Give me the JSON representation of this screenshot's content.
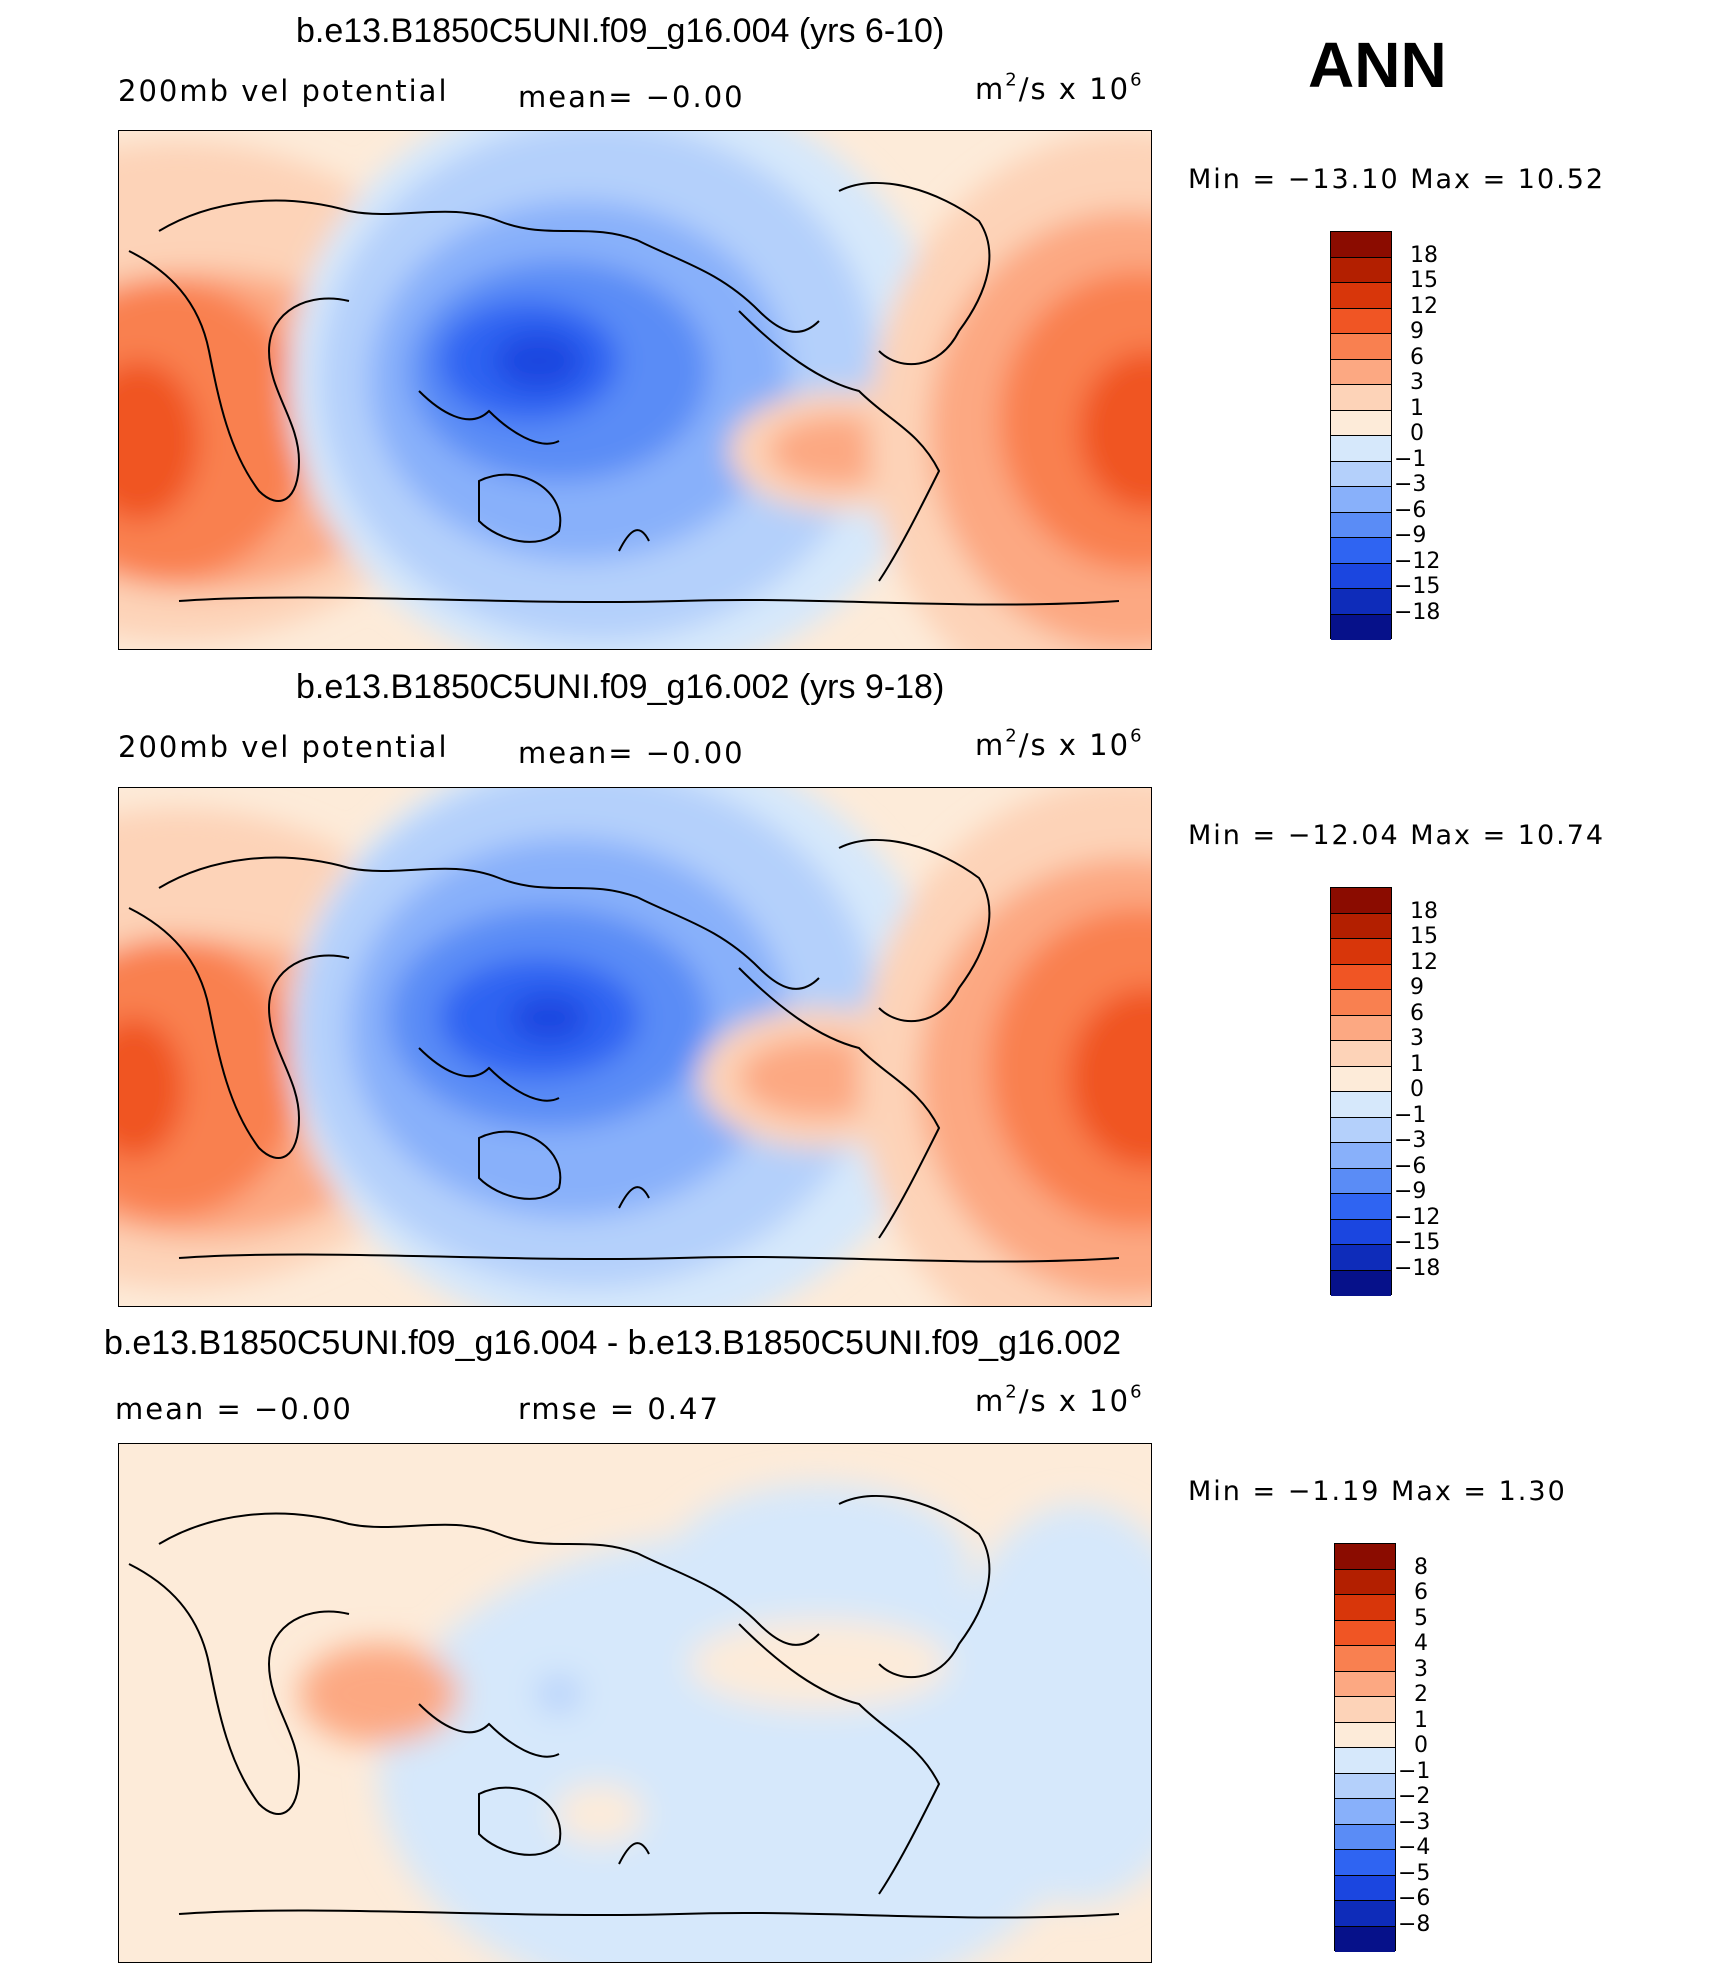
{
  "season": "ANN",
  "panels": [
    {
      "title": "b.e13.B1850C5UNI.f09_g16.004 (yrs 6-10)",
      "left_label": "200mb vel potential",
      "mid_label": "mean=   −0.00",
      "units_base": "m",
      "units_mid": "/s x 10",
      "units_exp1": "2",
      "units_exp2": "6",
      "minmax": "Min = −13.10 Max =  10.52",
      "colorbar": {
        "labels": [
          "18",
          "15",
          "12",
          "9",
          "6",
          "3",
          "1",
          "0",
          "−1",
          "−3",
          "−6",
          "−9",
          "−12",
          "−15",
          "−18"
        ],
        "colors": [
          "#8b0c00",
          "#b31f00",
          "#d8360a",
          "#f05524",
          "#f98050",
          "#fca882",
          "#fdd3b8",
          "#fdebd9",
          "#d6e8fb",
          "#b4d0fb",
          "#88b0fa",
          "#5a8cf6",
          "#2f64f2",
          "#1b46e0",
          "#0e2cba",
          "#06118a"
        ]
      }
    },
    {
      "title": "b.e13.B1850C5UNI.f09_g16.002 (yrs 9-18)",
      "left_label": "200mb vel potential",
      "mid_label": "mean=   −0.00",
      "units_base": "m",
      "units_mid": "/s x 10",
      "units_exp1": "2",
      "units_exp2": "6",
      "minmax": "Min = −12.04 Max =  10.74",
      "colorbar": {
        "labels": [
          "18",
          "15",
          "12",
          "9",
          "6",
          "3",
          "1",
          "0",
          "−1",
          "−3",
          "−6",
          "−9",
          "−12",
          "−15",
          "−18"
        ],
        "colors": [
          "#8b0c00",
          "#b31f00",
          "#d8360a",
          "#f05524",
          "#f98050",
          "#fca882",
          "#fdd3b8",
          "#fdebd9",
          "#d6e8fb",
          "#b4d0fb",
          "#88b0fa",
          "#5a8cf6",
          "#2f64f2",
          "#1b46e0",
          "#0e2cba",
          "#06118a"
        ]
      }
    },
    {
      "title": "b.e13.B1850C5UNI.f09_g16.004 - b.e13.B1850C5UNI.f09_g16.002",
      "left_label": "mean =   −0.00",
      "mid_label": "rmse =    0.47",
      "units_base": "m",
      "units_mid": "/s x 10",
      "units_exp1": "2",
      "units_exp2": "6",
      "minmax": "Min =  −1.19 Max =   1.30",
      "colorbar": {
        "labels": [
          "8",
          "6",
          "5",
          "4",
          "3",
          "2",
          "1",
          "0",
          "−1",
          "−2",
          "−3",
          "−4",
          "−5",
          "−6",
          "−8"
        ],
        "colors": [
          "#8b0c00",
          "#b31f00",
          "#d8360a",
          "#f05524",
          "#f98050",
          "#fca882",
          "#fdd3b8",
          "#fdebd9",
          "#d6e8fb",
          "#b4d0fb",
          "#88b0fa",
          "#5a8cf6",
          "#2f64f2",
          "#1b46e0",
          "#0e2cba",
          "#06118a"
        ]
      }
    }
  ]
}
